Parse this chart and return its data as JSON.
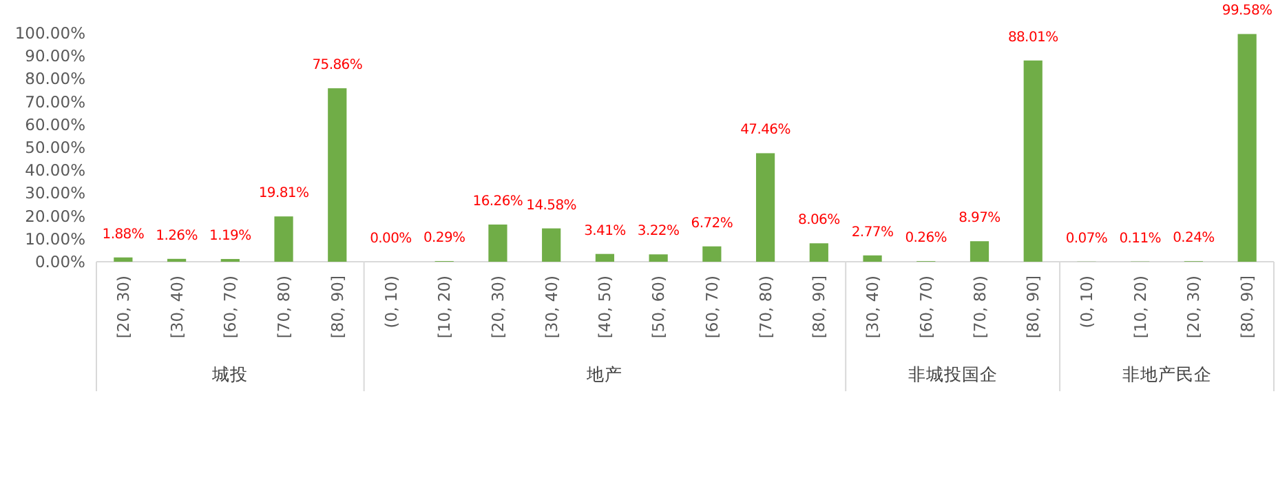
{
  "chart_data": [
    {
      "type": "bar",
      "xlabel": "城投",
      "categories": [
        "[20, 30)",
        "[30, 40)",
        "[60, 70)",
        "[70, 80)",
        "[80, 90]"
      ],
      "values": [
        1.88,
        1.26,
        1.19,
        19.81,
        75.86
      ],
      "value_labels": [
        "1.88%",
        "1.26%",
        "1.19%",
        "19.81%",
        "75.86%"
      ],
      "color": "#70ad47",
      "ylim": [
        0,
        100
      ],
      "yticks": [
        {
          "value": 0,
          "label": "0.00%"
        },
        {
          "value": 10,
          "label": "10.00%"
        },
        {
          "value": 20,
          "label": "20.00%"
        },
        {
          "value": 30,
          "label": "30.00%"
        },
        {
          "value": 40,
          "label": "40.00%"
        },
        {
          "value": 50,
          "label": "50.00%"
        },
        {
          "value": 60,
          "label": "60.00%"
        },
        {
          "value": 70,
          "label": "70.00%"
        },
        {
          "value": 80,
          "label": "80.00%"
        },
        {
          "value": 90,
          "label": "90.00%"
        },
        {
          "value": 100,
          "label": "100.00%"
        }
      ]
    },
    {
      "type": "bar",
      "xlabel": "地产",
      "categories": [
        "(0, 10)",
        "[10, 20)",
        "[20, 30)",
        "[30, 40)",
        "[40, 50)",
        "[50, 60)",
        "[60, 70)",
        "[70, 80)",
        "[80, 90]"
      ],
      "values": [
        0.0,
        0.29,
        16.26,
        14.58,
        3.41,
        3.22,
        6.72,
        47.46,
        8.06
      ],
      "value_labels": [
        "0.00%",
        "0.29%",
        "16.26%",
        "14.58%",
        "3.41%",
        "3.22%",
        "6.72%",
        "47.46%",
        "8.06%"
      ],
      "color": "#70ad47",
      "ylim": [
        0,
        100
      ],
      "tick_labels": "x"
    },
    {
      "type": "bar",
      "xlabel": "非城投国企",
      "categories": [
        "[30, 40)",
        "[60, 70)",
        "[70, 80)",
        "[80, 90]"
      ],
      "values": [
        2.77,
        0.26,
        8.97,
        88.01
      ],
      "value_labels": [
        "2.77%",
        "0.26%",
        "8.97%",
        "88.01%"
      ],
      "color": "#70ad47",
      "ylim": [
        0,
        100
      ],
      "tick_labels": "x"
    },
    {
      "type": "bar",
      "xlabel": "非地产民企",
      "categories": [
        "(0, 10)",
        "[10, 20)",
        "[20, 30)",
        "[80, 90]"
      ],
      "values": [
        0.07,
        0.11,
        0.24,
        99.58
      ],
      "value_labels": [
        "0.07%",
        "0.11%",
        "0.24%",
        "99.58%"
      ],
      "color": "#70ad47",
      "ylim": [
        0,
        100
      ],
      "tick_labels": "x"
    }
  ]
}
